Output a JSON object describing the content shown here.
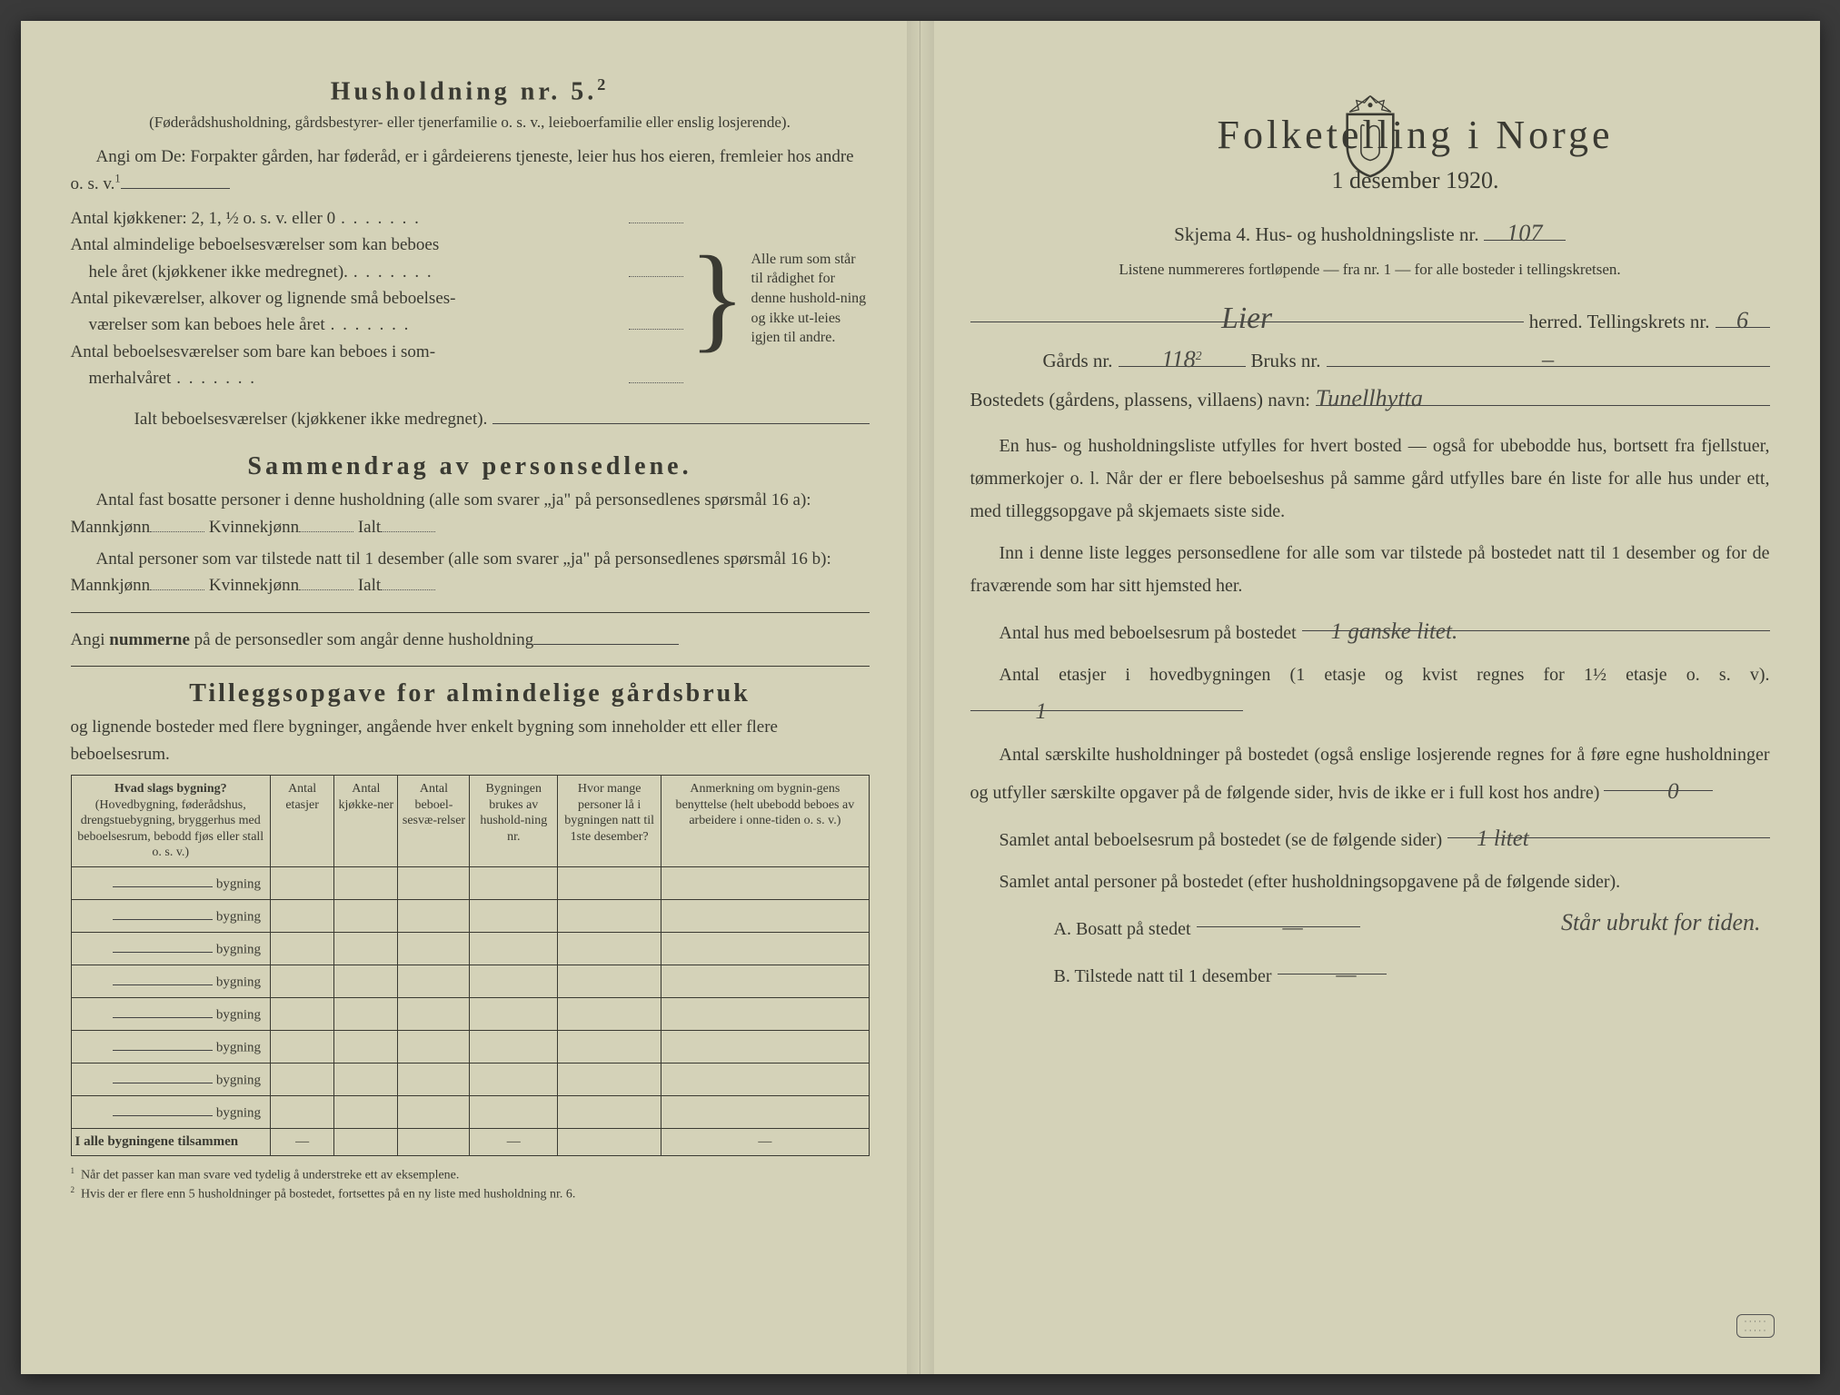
{
  "colors": {
    "paper": "#d4d2b8",
    "ink": "#3a3a32",
    "handwriting": "#4a4a44",
    "background": "#3a3a3a"
  },
  "left": {
    "heading": "Husholdning nr. 5.",
    "heading_sup": "2",
    "sub1": "(Føderådshusholdning, gårdsbestyrer- eller tjenerfamilie o. s. v., leieboerfamilie eller enslig losjerende).",
    "sub2a": "Angi om De: Forpakter gården, har føderåd, er i gårdeierens tjeneste, leier hus hos eieren, fremleier hos andre o. s. v.",
    "sub2sup": "1",
    "lines": {
      "l1": "Antal kjøkkener: 2, 1, ½ o. s. v. eller 0",
      "l2a": "Antal almindelige beboelsesværelser som kan beboes",
      "l2b": "hele året (kjøkkener ikke medregnet).",
      "l3a": "Antal pikeværelser, alkover og lignende små beboelses-",
      "l3b": "værelser som kan beboes hele året",
      "l4a": "Antal beboelsesværelser som bare kan beboes i som-",
      "l4b": "merhalvåret",
      "l5": "Ialt beboelsesværelser (kjøkkener ikke medregnet)."
    },
    "brace_text": "Alle rum som står til rådighet for denne hushold-ning og ikke ut-leies igjen til andre.",
    "sec2": "Sammendrag av personsedlene.",
    "sec2_l1": "Antal fast bosatte personer i denne husholdning (alle som svarer „ja\" på personsedlenes spørsmål 16 a): Mannkjønn",
    "sec2_kv": "Kvinnekjønn",
    "sec2_ialt": "Ialt",
    "sec2_l2": "Antal personer som var tilstede natt til 1 desember (alle som svarer „ja\" på personsedlenes spørsmål 16 b): Mannkjønn",
    "sec2_l3pre": "Angi ",
    "sec2_l3bold": "nummerne",
    "sec2_l3post": " på de personsedler som angår denne husholdning",
    "sec3": "Tilleggsopgave for almindelige gårdsbruk",
    "sec3_sub": "og lignende bosteder med flere bygninger, angående hver enkelt bygning som inneholder ett eller flere beboelsesrum.",
    "table": {
      "h1a": "Hvad slags bygning?",
      "h1b": "(Hovedbygning, føderådshus, drengstuebygning, bryggerhus med beboelsesrum, bebodd fjøs eller stall o. s. v.)",
      "h2": "Antal etasjer",
      "h3": "Antal kjøkke-ner",
      "h4": "Antal beboel-sesvæ-relser",
      "h5": "Bygningen brukes av hushold-ning nr.",
      "h6": "Hvor mange personer lå i bygningen natt til 1ste desember?",
      "h7": "Anmerkning om bygnin-gens benyttelse (helt ubebodd beboes av arbeidere i onne-tiden o. s. v.)",
      "rowlabel": "bygning",
      "footer": "I alle bygningene tilsammen"
    },
    "fn1": "Når det passer kan man svare ved tydelig å understreke ett av eksemplene.",
    "fn2": "Hvis der er flere enn 5 husholdninger på bostedet, fortsettes på en ny liste med husholdning nr. 6."
  },
  "right": {
    "title": "Folketelling i Norge",
    "date": "1 desember 1920.",
    "skjema": "Skjema 4.  Hus- og husholdningsliste nr.",
    "skjema_val": "107",
    "listene": "Listene nummereres fortløpende — fra nr. 1 — for alle bosteder i tellingskretsen.",
    "herred_val": "Lier",
    "herred_lbl": "herred.   Tellingskrets nr.",
    "krets_val": "6",
    "gard_lbl": "Gårds nr.",
    "gard_val": "118",
    "gard_sup": "2",
    "bruk_lbl": "Bruks nr.",
    "bruk_val": "–",
    "bosted_lbl": "Bostedets (gårdens, plassens, villaens) navn:",
    "bosted_val": "Tunellhytta",
    "p1": "En hus- og husholdningsliste utfylles for hvert bosted — også for ubebodde hus, bortsett fra fjellstuer, tømmerkojer o. l.  Når der er flere beboelseshus på samme gård utfylles bare én liste for alle hus under ett, med tilleggsopgave på skjemaets siste side.",
    "p1_bold1": "flere",
    "p1_bold2": "tilleggsopgave på skjemaets siste side.",
    "p2": "Inn i denne liste legges personsedlene for alle som var tilstede på bostedet natt til 1 desember og for de fraværende som har sitt hjemsted her.",
    "q1": "Antal hus med beboelsesrum på bostedet",
    "q1_val": "1 ganske litet.",
    "q2a": "Antal etasjer i hovedbygningen (1 etasje og kvist regnes for 1½ etasje o. s. v).",
    "q2_val": "1",
    "q3": "Antal særskilte husholdninger på bostedet (også enslige losjerende regnes for å føre egne husholdninger og utfyller særskilte opgaver på de følgende sider, hvis de ikke er i full kost hos andre)",
    "q3_val": "0",
    "q4": "Samlet antal beboelsesrum på bostedet (se de følgende sider)",
    "q4_val": "1 litet",
    "q5": "Samlet antal personer på bostedet (efter husholdningsopgavene på de følgende sider).",
    "q5_note": "Står ubrukt for tiden.",
    "qA": "A.  Bosatt på stedet",
    "qA_val": "—",
    "qB": "B.  Tilstede natt til 1 desember",
    "qB_val": "—"
  }
}
